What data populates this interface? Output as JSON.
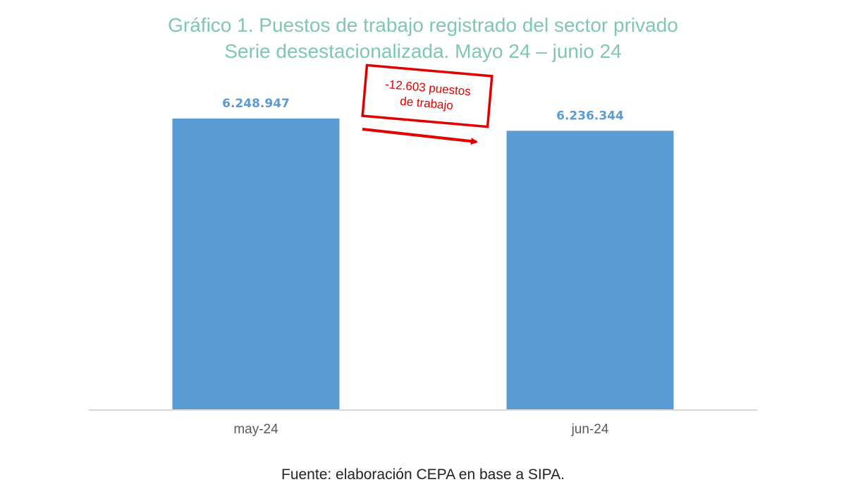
{
  "chart_data": {
    "type": "bar",
    "title": "Gráfico 1. Puestos de trabajo registrado del sector privado",
    "subtitle": "Serie desestacionalizada. Mayo 24 – junio 24",
    "categories": [
      "may-24",
      "jun-24"
    ],
    "values": [
      6248947,
      6236344
    ],
    "value_labels": [
      "6.248.947",
      "6.236.344"
    ],
    "ylim": [
      5950000,
      6280000
    ],
    "grid": false,
    "legend": "none",
    "bar_color": "#5b9bd5",
    "annotation": {
      "lines": [
        "-12.603 puestos",
        "de trabajo"
      ],
      "color": "#e00000"
    },
    "source": "Fuente: elaboración CEPA en base a SIPA."
  }
}
